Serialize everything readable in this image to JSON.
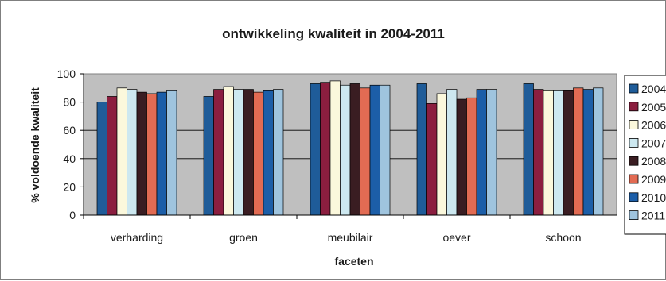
{
  "chart_data": {
    "type": "bar",
    "title": "ontwikkeling kwaliteit in 2004-2011",
    "xlabel": "faceten",
    "ylabel": "% voldoende kwaliteit",
    "ylim": [
      0,
      100
    ],
    "yticks": [
      "0",
      "20",
      "40",
      "60",
      "80",
      "100"
    ],
    "grid": true,
    "legend_position": "right",
    "categories": [
      "verharding",
      "groen",
      "meubilair",
      "oever",
      "schoon"
    ],
    "series": [
      {
        "name": "2004",
        "color": "#1f5c99",
        "values": [
          80,
          84,
          93,
          93,
          93
        ]
      },
      {
        "name": "2005",
        "color": "#8b1e3f",
        "values": [
          84,
          89,
          94,
          79,
          89
        ]
      },
      {
        "name": "2006",
        "color": "#fbf8dc",
        "values": [
          90,
          91,
          95,
          86,
          88
        ]
      },
      {
        "name": "2007",
        "color": "#cde8f0",
        "values": [
          89,
          89,
          92,
          89,
          88
        ]
      },
      {
        "name": "2008",
        "color": "#3a1d22",
        "values": [
          87,
          89,
          93,
          82,
          88
        ]
      },
      {
        "name": "2009",
        "color": "#e26b53",
        "values": [
          86,
          87,
          90,
          83,
          90
        ]
      },
      {
        "name": "2010",
        "color": "#1c5ea8",
        "values": [
          87,
          88,
          92,
          89,
          89
        ]
      },
      {
        "name": "2011",
        "color": "#9fc4de",
        "values": [
          88,
          89,
          92,
          89,
          90
        ]
      }
    ]
  }
}
